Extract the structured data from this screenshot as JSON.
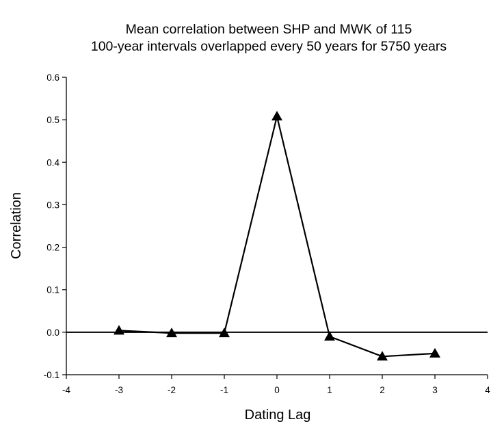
{
  "chart_data": {
    "type": "line",
    "title_line1": "Mean correlation between SHP and MWK of 115",
    "title_line2": "100-year intervals overlapped every 50 years for 5750 years",
    "xlabel": "Dating Lag",
    "ylabel": "Correlation",
    "xlim": [
      -4,
      4
    ],
    "ylim": [
      -0.1,
      0.6
    ],
    "x_ticks": [
      -4,
      -3,
      -2,
      -1,
      0,
      1,
      2,
      3,
      4
    ],
    "y_ticks": [
      -0.1,
      0.0,
      0.1,
      0.2,
      0.3,
      0.4,
      0.5,
      0.6
    ],
    "x_tick_labels": [
      "-4",
      "-3",
      "-2",
      "-1",
      "0",
      "1",
      "2",
      "3",
      "4"
    ],
    "y_tick_labels": [
      "-0.1",
      "0.0",
      "0.1",
      "0.2",
      "0.3",
      "0.4",
      "0.5",
      "0.6"
    ],
    "reference_line_y": 0.0,
    "grid": false,
    "marker": "triangle",
    "series": [
      {
        "x": [
          -3,
          -2,
          -1,
          0,
          1,
          2,
          3
        ],
        "y": [
          0.004,
          -0.002,
          -0.002,
          0.508,
          -0.01,
          -0.057,
          -0.05
        ]
      }
    ],
    "colors": {
      "line": "#000000",
      "marker": "#000000",
      "axis": "#000000"
    }
  }
}
